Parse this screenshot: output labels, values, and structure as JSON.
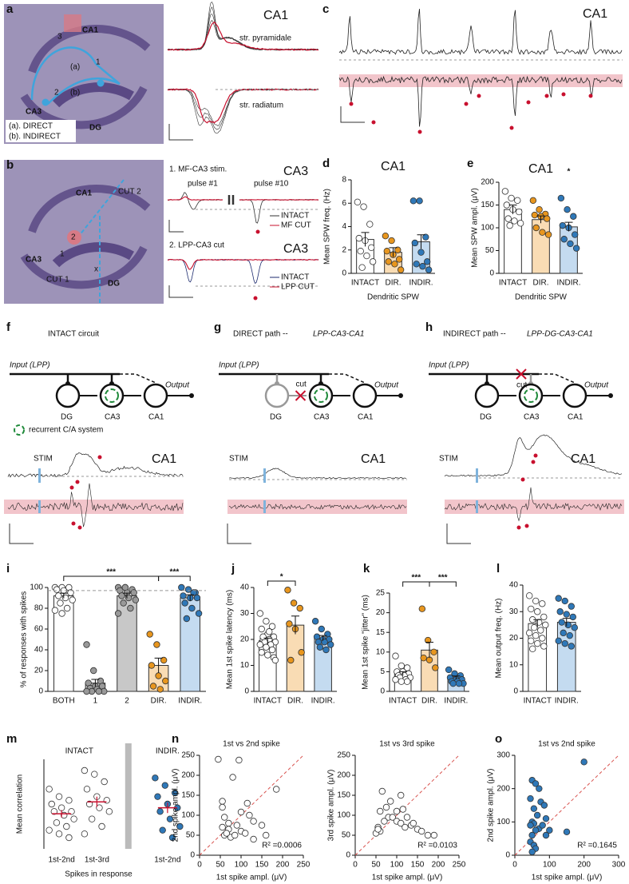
{
  "panel_letters": [
    "a",
    "b",
    "c",
    "d",
    "e",
    "f",
    "g",
    "h",
    "i",
    "j",
    "k",
    "l",
    "m",
    "n",
    "o"
  ],
  "panel_a": {
    "region_ca1": "CA1",
    "region_ca3": "CA3",
    "region_dg": "DG",
    "path_a": "(a)",
    "path_b": "(b)",
    "site_1": "1",
    "site_2": "2",
    "site_3": "3",
    "legend_a": "(a). DIRECT",
    "legend_b": "(b). INDIRECT",
    "trace_title": "CA1",
    "trace_top": "str. pyramidale",
    "trace_bottom": "str. radiatum"
  },
  "panel_b": {
    "region_ca1": "CA1",
    "region_ca3": "CA3",
    "region_dg": "DG",
    "cut_1": "CUT 1",
    "cut_2": "CUT 2",
    "site_1": "1",
    "site_2": "2",
    "mark_x": "x",
    "stim_1_title": "1. MF-CA3 stim.",
    "stim_1_region": "CA3",
    "pulse_1": "pulse #1",
    "pulse_10": "pulse #10",
    "legend_1": [
      "INTACT",
      "MF CUT"
    ],
    "stim_2_title": "2. LPP-CA3 cut",
    "stim_2_region": "CA3",
    "legend_2": [
      "INTACT",
      "LPP CUT"
    ]
  },
  "panel_c": {
    "title": "CA1"
  },
  "panel_f": {
    "title": "INTACT circuit",
    "input": "Input (LPP)",
    "output": "Output",
    "nodes": [
      "DG",
      "CA3",
      "CA1"
    ],
    "recurrent": "recurrent C/A system",
    "trace_title": "CA1",
    "stim": "STIM"
  },
  "panel_g": {
    "title": "DIRECT path --",
    "subtitle": "LPP-CA3-CA1",
    "input": "Input (LPP)",
    "output": "Output",
    "nodes": [
      "DG",
      "CA3",
      "CA1"
    ],
    "cut": "cut",
    "trace_title": "CA1",
    "stim": "STIM"
  },
  "panel_h": {
    "title": "INDIRECT path --",
    "subtitle": "LPP-DG-CA3-CA1",
    "input": "Input (LPP)",
    "output": "Output",
    "nodes": [
      "DG",
      "CA3",
      "CA1"
    ],
    "cut": "cut",
    "trace_title": "CA1",
    "stim": "STIM"
  },
  "chart_data": [
    {
      "type": "bar",
      "title": "CA1",
      "y_label": "Mean SPW freq. (Hz)",
      "x_label": "Dendritic SPW",
      "categories": [
        "INTACT",
        "DIR.",
        "INDIR."
      ],
      "values": [
        2.9,
        1.8,
        2.7
      ],
      "errors": [
        0.6,
        0.4,
        0.6
      ],
      "bar_colors": [
        "#ffffff",
        "#f9dcb4",
        "#c4dbf0"
      ],
      "point_colors": [
        "#ffffff",
        "#e8961e",
        "#2f78b8"
      ],
      "points": [
        [
          6.1,
          5.7,
          4.2,
          3.0,
          2.8,
          2.2,
          1.9,
          1.5,
          1.0,
          0.5
        ],
        [
          3.2,
          2.8,
          2.0,
          1.9,
          1.6,
          1.2,
          1.0,
          0.8,
          0.3
        ],
        [
          6.2,
          6.2,
          3.1,
          2.6,
          1.8,
          1.0,
          0.8,
          0.6,
          0.3
        ]
      ],
      "ylim": [
        0,
        8
      ],
      "yticks": [
        0,
        2,
        4,
        6,
        8
      ]
    },
    {
      "type": "bar",
      "title": "CA1",
      "y_label": "Mean SPW ampl. (μV)",
      "x_label": "Dendritic SPW",
      "categories": [
        "INTACT",
        "DIR.",
        "INDIR."
      ],
      "values": [
        140,
        118,
        102
      ],
      "errors": [
        10,
        8,
        10
      ],
      "bar_colors": [
        "#ffffff",
        "#f9dcb4",
        "#c4dbf0"
      ],
      "point_colors": [
        "#ffffff",
        "#e8961e",
        "#2f78b8"
      ],
      "points": [
        [
          180,
          165,
          160,
          150,
          140,
          135,
          120,
          115,
          110,
          105
        ],
        [
          160,
          140,
          130,
          128,
          125,
          120,
          100,
          90,
          85
        ],
        [
          165,
          140,
          125,
          105,
          100,
          85,
          75,
          65,
          55
        ]
      ],
      "annotations": [
        "*"
      ],
      "ylim": [
        0,
        200
      ],
      "yticks": [
        0,
        50,
        100,
        150,
        200
      ]
    },
    {
      "type": "bar",
      "y_label": "% of responses with spikes",
      "categories": [
        "BOTH",
        "1",
        "2",
        "DIR.",
        "INDIR."
      ],
      "values": [
        92,
        8,
        92,
        25,
        90
      ],
      "errors": [
        2.5,
        3.5,
        2.5,
        7,
        3
      ],
      "bar_colors": [
        "#ffffff",
        "#c8c8c8",
        "#c8c8c8",
        "#f9dcb4",
        "#c4dbf0"
      ],
      "point_colors": [
        "#ffffff",
        "#999999",
        "#999999",
        "#e8961e",
        "#2f78b8"
      ],
      "points": [
        [
          100,
          100,
          100,
          98,
          97,
          95,
          92,
          90,
          88,
          85,
          80,
          78,
          75
        ],
        [
          45,
          20,
          10,
          8,
          5,
          5,
          3,
          2,
          0,
          0,
          0,
          0
        ],
        [
          100,
          100,
          98,
          97,
          95,
          95,
          92,
          90,
          88,
          85,
          80,
          75,
          100
        ],
        [
          55,
          45,
          30,
          25,
          15,
          10,
          5,
          2
        ],
        [
          100,
          98,
          95,
          92,
          90,
          90,
          85,
          80,
          75,
          70,
          95
        ]
      ],
      "hline": 97,
      "annotations": [
        "***",
        "***"
      ],
      "ylim": [
        0,
        100
      ],
      "yticks": [
        0,
        20,
        40,
        60,
        80,
        100
      ]
    },
    {
      "type": "bar",
      "y_label": "Mean 1st spike latency (ms)",
      "categories": [
        "INTACT",
        "DIR.",
        "INDIR."
      ],
      "values": [
        19.5,
        25.5,
        20.5
      ],
      "errors": [
        1,
        3.5,
        1
      ],
      "bar_colors": [
        "#ffffff",
        "#f9dcb4",
        "#c4dbf0"
      ],
      "point_colors": [
        "#ffffff",
        "#e8961e",
        "#2f78b8"
      ],
      "points": [
        [
          30,
          27,
          25,
          24,
          22,
          21,
          20,
          20,
          19,
          19,
          18,
          18,
          17,
          16,
          15,
          14,
          13,
          21,
          23,
          12
        ],
        [
          39,
          34,
          32,
          26,
          24,
          15,
          12
        ],
        [
          27,
          24,
          22,
          21,
          20,
          20,
          19,
          19,
          18,
          17,
          16
        ]
      ],
      "annotations": [
        "*"
      ],
      "ylim": [
        0,
        40
      ],
      "yticks": [
        0,
        10,
        20,
        30,
        40
      ]
    },
    {
      "type": "bar",
      "y_label": "Mean 1st spike \"jitter\" (ms)",
      "categories": [
        "INTACT",
        "DIR.",
        "INDIR."
      ],
      "values": [
        4.5,
        10.5,
        3.5
      ],
      "errors": [
        0.5,
        2,
        0.4
      ],
      "bar_colors": [
        "#ffffff",
        "#f9dcb4",
        "#c4dbf0"
      ],
      "point_colors": [
        "#ffffff",
        "#e8961e",
        "#2f78b8"
      ],
      "points": [
        [
          9,
          6.5,
          6,
          5,
          5,
          4.5,
          4,
          4,
          3.5,
          3.5,
          3,
          3,
          2.5,
          2.5
        ],
        [
          21,
          13,
          10,
          8.5,
          8,
          6
        ],
        [
          5.5,
          4.5,
          4,
          3.5,
          3,
          3,
          2.5,
          2.5,
          2,
          2,
          2
        ]
      ],
      "annotations": [
        "***",
        "***"
      ],
      "ylim": [
        0,
        25
      ],
      "yticks": [
        0,
        5,
        10,
        15,
        20,
        25
      ]
    },
    {
      "type": "bar",
      "y_label": "Mean output freq. (Hz)",
      "categories": [
        "INTACT",
        "INDIR."
      ],
      "values": [
        25.5,
        26
      ],
      "errors": [
        1.5,
        1.5
      ],
      "bar_colors": [
        "#ffffff",
        "#c4dbf0"
      ],
      "point_colors": [
        "#ffffff",
        "#2f78b8"
      ],
      "points": [
        [
          36,
          34,
          33,
          31,
          30,
          28,
          27,
          26,
          25,
          24,
          23,
          22,
          21,
          20,
          19,
          18,
          17,
          16
        ],
        [
          35,
          34,
          32,
          30,
          29,
          28,
          26,
          25,
          24,
          22,
          21,
          19,
          18,
          17
        ]
      ],
      "ylim": [
        0,
        40
      ],
      "yticks": [
        0,
        10,
        20,
        30,
        40
      ]
    },
    {
      "type": "strip",
      "y_label": "Mean correlation",
      "x_label": "Spikes in response",
      "groups": [
        "INTACT",
        "INDIR."
      ],
      "categories": [
        "1st-2nd",
        "1st-3rd",
        "1st-2nd"
      ],
      "means": [
        -0.13,
        0.03,
        -0.05
      ],
      "errors": [
        0.05,
        0.07,
        0.07
      ],
      "point_colors": [
        "#ffffff",
        "#ffffff",
        "#2f78b8"
      ],
      "points": [
        [
          0.2,
          0.1,
          0.05,
          0,
          -0.05,
          -0.1,
          -0.1,
          -0.15,
          -0.2,
          -0.25,
          -0.3,
          -0.35,
          -0.4,
          -0.45
        ],
        [
          0.45,
          0.4,
          0.3,
          0.2,
          0.1,
          0.05,
          0,
          -0.05,
          -0.1,
          -0.2,
          -0.3,
          -0.4
        ],
        [
          0.35,
          0.25,
          0.15,
          0.1,
          0,
          -0.05,
          -0.1,
          -0.2,
          -0.3,
          -0.35,
          -0.45
        ]
      ],
      "ylim": [
        -0.6,
        0.6
      ]
    },
    {
      "type": "scatter",
      "title": "1st vs 2nd spike",
      "x_label": "1st spike ampl. (μV)",
      "y_label": "2nd spike ampl. (μV)",
      "r2": "R² =0.0006",
      "color": "#ffffff",
      "x": [
        45,
        95,
        80,
        185,
        55,
        55,
        100,
        115,
        60,
        70,
        90,
        130,
        150,
        55,
        70,
        100,
        110,
        160,
        60,
        75,
        85,
        130,
        65,
        120
      ],
      "values": [
        240,
        238,
        195,
        165,
        135,
        120,
        108,
        130,
        95,
        80,
        75,
        85,
        75,
        70,
        65,
        60,
        55,
        50,
        50,
        45,
        50,
        40,
        55,
        100
      ],
      "xlim": [
        0,
        250
      ],
      "ylim": [
        0,
        250
      ],
      "xticks": [
        0,
        50,
        100,
        150,
        200,
        250
      ],
      "yticks": [
        0,
        50,
        100,
        150,
        200,
        250
      ]
    },
    {
      "type": "scatter",
      "title": "1st vs 3rd spike",
      "x_label": "1st spike ampl. (μV)",
      "y_label": "3rd spike ampl. (μV)",
      "r2": "R² =0.0103",
      "color": "#ffffff",
      "x": [
        65,
        85,
        100,
        115,
        75,
        110,
        60,
        80,
        90,
        70,
        125,
        135,
        150,
        160,
        175,
        190,
        55,
        60,
        50,
        55,
        100,
        110,
        120,
        140
      ],
      "values": [
        160,
        135,
        110,
        115,
        120,
        150,
        110,
        95,
        95,
        85,
        95,
        75,
        65,
        60,
        50,
        50,
        70,
        60,
        55,
        65,
        85,
        80,
        70,
        80
      ],
      "xlim": [
        0,
        250
      ],
      "ylim": [
        0,
        250
      ],
      "xticks": [
        0,
        50,
        100,
        150,
        200,
        250
      ],
      "yticks": [
        0,
        50,
        100,
        150,
        200,
        250
      ]
    },
    {
      "type": "scatter",
      "title": "1st vs 2nd spike",
      "x_label": "1st spike ampl. (μV)",
      "y_label": "2nd spike ampl. (μV)",
      "r2": "R² =0.1645",
      "color": "#2f78b8",
      "x": [
        200,
        50,
        60,
        70,
        45,
        75,
        85,
        55,
        65,
        90,
        50,
        55,
        45,
        70,
        60,
        100,
        50,
        90,
        45,
        55,
        60,
        50,
        150,
        80
      ],
      "values": [
        280,
        225,
        215,
        200,
        170,
        160,
        150,
        140,
        120,
        110,
        100,
        95,
        90,
        80,
        75,
        75,
        60,
        60,
        40,
        30,
        20,
        10,
        70,
        90
      ],
      "xlim": [
        0,
        300
      ],
      "ylim": [
        0,
        300
      ],
      "xticks": [
        0,
        100,
        200,
        300
      ],
      "yticks": [
        0,
        100,
        200,
        300
      ]
    }
  ]
}
